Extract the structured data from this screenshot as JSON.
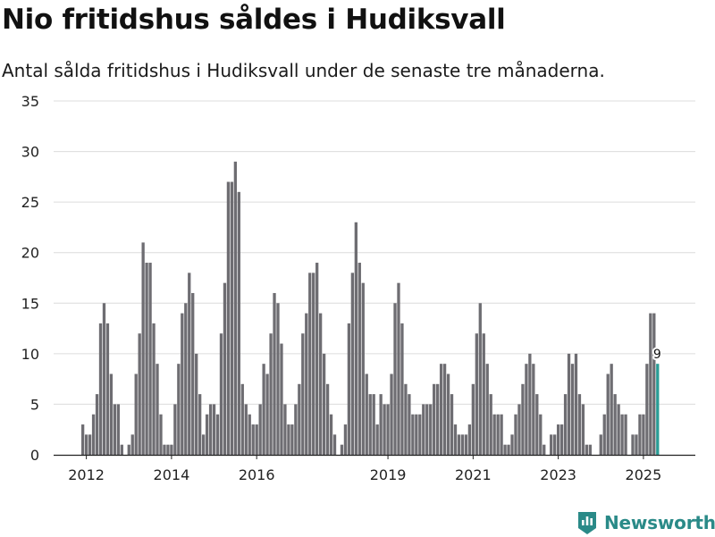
{
  "title": "Nio fritidshus såldes i Hudiksvall",
  "subtitle": "Antal sålda fritidshus i Hudiksvall under de senaste tre månaderna.",
  "brand": {
    "name": "Newsworthy",
    "icon": "bar-chart-logo-icon"
  },
  "colors": {
    "bar": "#6e6d72",
    "highlight": "#2a9d96",
    "grid": "#dcdcdc",
    "axis": "#222222",
    "brand": "#2a8a88"
  },
  "chart_data": {
    "type": "bar",
    "title": "Nio fritidshus såldes i Hudiksvall",
    "xlabel": "",
    "ylabel": "",
    "ylim": [
      0,
      35
    ],
    "yticks": [
      0,
      5,
      10,
      15,
      20,
      25,
      30,
      35
    ],
    "grid": true,
    "start_month": "2012-01",
    "xticks": [
      {
        "label": "2012",
        "month_index": 1
      },
      {
        "label": "2014",
        "month_index": 25
      },
      {
        "label": "2016",
        "month_index": 49
      },
      {
        "label": "2019",
        "month_index": 86
      },
      {
        "label": "2021",
        "month_index": 110
      },
      {
        "label": "2023",
        "month_index": 134
      },
      {
        "label": "2025",
        "month_index": 158
      }
    ],
    "values": [
      3,
      2,
      2,
      4,
      6,
      13,
      15,
      13,
      8,
      5,
      5,
      1,
      0,
      1,
      2,
      8,
      12,
      21,
      19,
      19,
      13,
      9,
      4,
      1,
      1,
      1,
      5,
      9,
      14,
      15,
      18,
      16,
      10,
      6,
      2,
      4,
      5,
      5,
      4,
      12,
      17,
      27,
      27,
      29,
      26,
      7,
      5,
      4,
      3,
      3,
      5,
      9,
      8,
      12,
      16,
      15,
      11,
      5,
      3,
      3,
      5,
      7,
      12,
      14,
      18,
      18,
      19,
      14,
      10,
      7,
      4,
      2,
      0,
      1,
      3,
      13,
      18,
      23,
      19,
      17,
      8,
      6,
      6,
      3,
      6,
      5,
      5,
      8,
      15,
      17,
      13,
      7,
      6,
      4,
      4,
      4,
      5,
      5,
      5,
      7,
      7,
      9,
      9,
      8,
      6,
      3,
      2,
      2,
      2,
      3,
      7,
      12,
      15,
      12,
      9,
      6,
      4,
      4,
      4,
      1,
      1,
      2,
      4,
      5,
      7,
      9,
      10,
      9,
      6,
      4,
      1,
      0,
      2,
      2,
      3,
      3,
      6,
      10,
      9,
      10,
      6,
      5,
      1,
      1,
      0,
      0,
      2,
      4,
      8,
      9,
      6,
      5,
      4,
      4,
      0,
      2,
      2,
      4,
      4,
      9,
      14,
      14,
      9
    ],
    "highlight_index": 162,
    "highlight_label": "9"
  }
}
